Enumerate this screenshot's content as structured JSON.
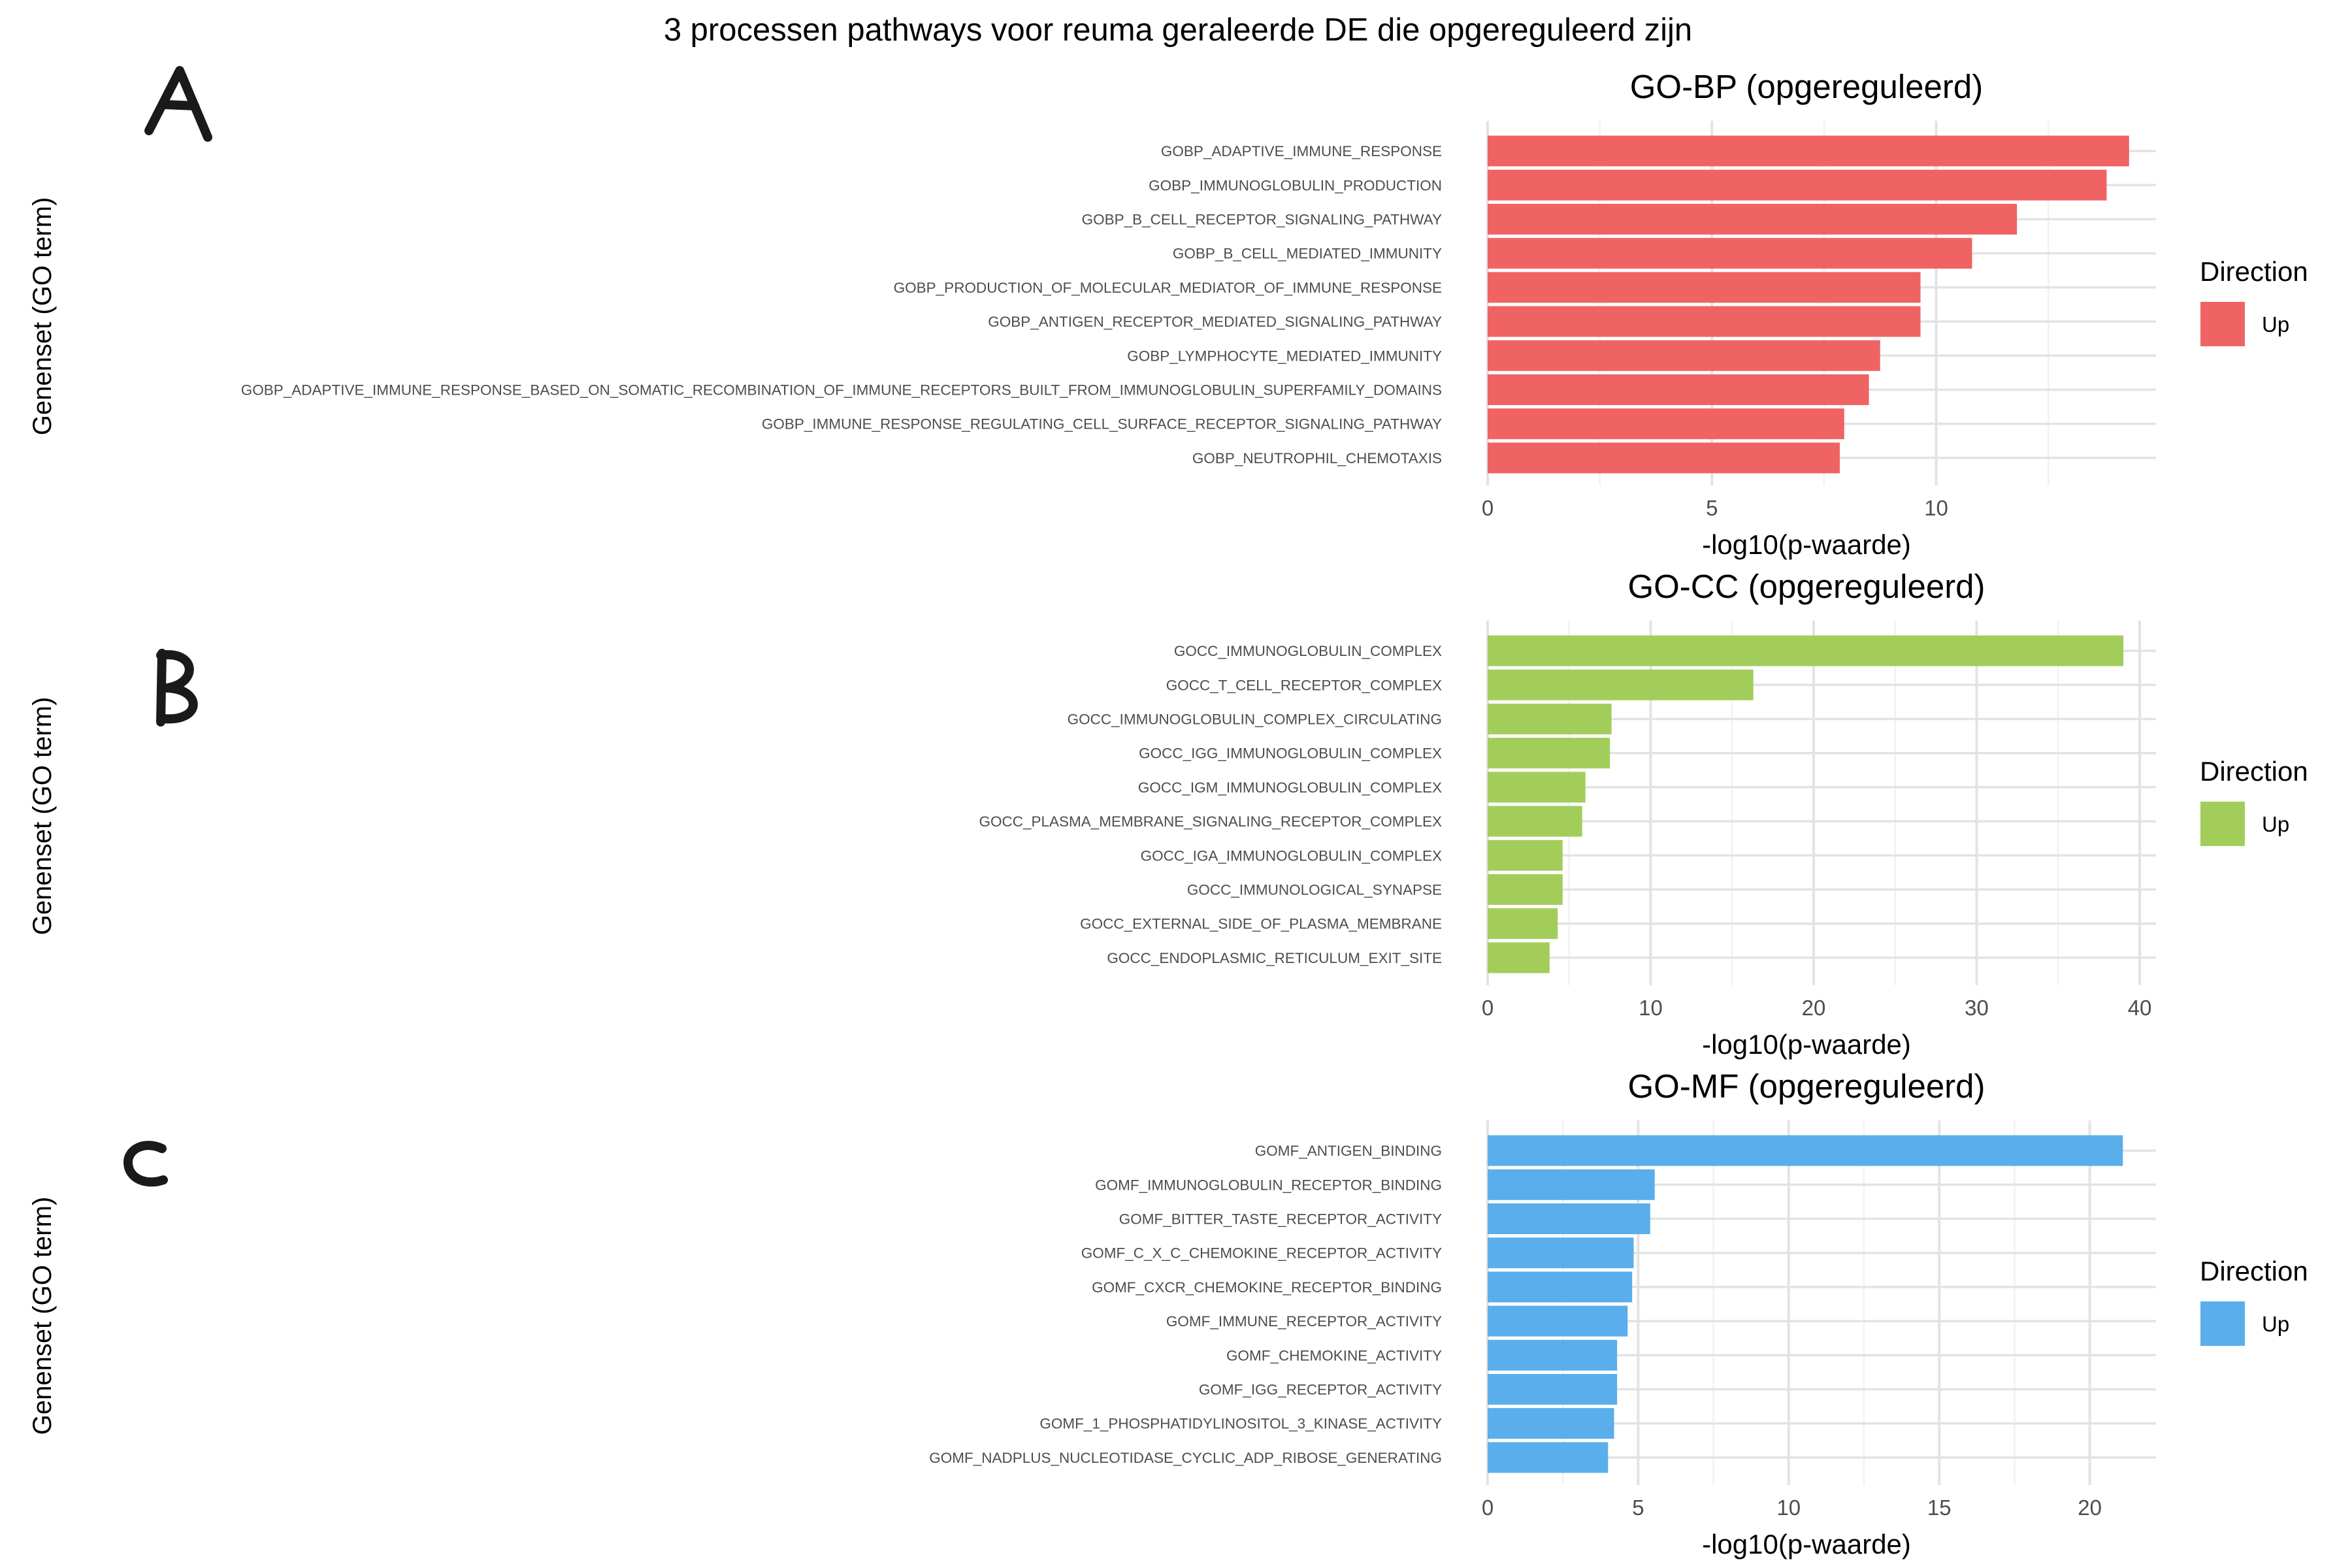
{
  "title": "3 processen pathways voor reuma geraleerde DE die opgereguleerd zijn",
  "panel_letters": [
    "A",
    "B",
    "C"
  ],
  "chart_data": [
    {
      "type": "bar",
      "orientation": "horizontal",
      "title": "GO-BP (opgereguleerd)",
      "xlabel": "-log10(p-waarde)",
      "ylabel": "Genenset (GO term)",
      "color": "#F06363",
      "legend": {
        "title": "Direction",
        "label": "Up",
        "placement": "right"
      },
      "xlim": [
        0,
        14.9
      ],
      "xticks": [
        0,
        5,
        10
      ],
      "grid": true,
      "categories": [
        "GOBP_ADAPTIVE_IMMUNE_RESPONSE",
        "GOBP_IMMUNOGLOBULIN_PRODUCTION",
        "GOBP_B_CELL_RECEPTOR_SIGNALING_PATHWAY",
        "GOBP_B_CELL_MEDIATED_IMMUNITY",
        "GOBP_PRODUCTION_OF_MOLECULAR_MEDIATOR_OF_IMMUNE_RESPONSE",
        "GOBP_ANTIGEN_RECEPTOR_MEDIATED_SIGNALING_PATHWAY",
        "GOBP_LYMPHOCYTE_MEDIATED_IMMUNITY",
        "GOBP_ADAPTIVE_IMMUNE_RESPONSE_BASED_ON_SOMATIC_RECOMBINATION_OF_IMMUNE_RECEPTORS_BUILT_FROM_IMMUNOGLOBULIN_SUPERFAMILY_DOMAINS",
        "GOBP_IMMUNE_RESPONSE_REGULATING_CELL_SURFACE_RECEPTOR_SIGNALING_PATHWAY",
        "GOBP_NEUTROPHIL_CHEMOTAXIS"
      ],
      "values": [
        14.3,
        13.8,
        11.8,
        10.8,
        9.65,
        9.65,
        8.75,
        8.5,
        7.95,
        7.85
      ]
    },
    {
      "type": "bar",
      "orientation": "horizontal",
      "title": "GO-CC (opgereguleerd)",
      "xlabel": "-log10(p-waarde)",
      "ylabel": "Genenset (GO term)",
      "color": "#A3CD5A",
      "legend": {
        "title": "Direction",
        "label": "Up",
        "placement": "right"
      },
      "xlim": [
        0,
        41
      ],
      "xticks": [
        0,
        10,
        20,
        30,
        40
      ],
      "grid": true,
      "categories": [
        "GOCC_IMMUNOGLOBULIN_COMPLEX",
        "GOCC_T_CELL_RECEPTOR_COMPLEX",
        "GOCC_IMMUNOGLOBULIN_COMPLEX_CIRCULATING",
        "GOCC_IGG_IMMUNOGLOBULIN_COMPLEX",
        "GOCC_IGM_IMMUNOGLOBULIN_COMPLEX",
        "GOCC_PLASMA_MEMBRANE_SIGNALING_RECEPTOR_COMPLEX",
        "GOCC_IGA_IMMUNOGLOBULIN_COMPLEX",
        "GOCC_IMMUNOLOGICAL_SYNAPSE",
        "GOCC_EXTERNAL_SIDE_OF_PLASMA_MEMBRANE",
        "GOCC_ENDOPLASMIC_RETICULUM_EXIT_SITE"
      ],
      "values": [
        39.0,
        16.3,
        7.6,
        7.5,
        6.0,
        5.8,
        4.6,
        4.6,
        4.3,
        3.8
      ]
    },
    {
      "type": "bar",
      "orientation": "horizontal",
      "title": "GO-MF (opgereguleerd)",
      "xlabel": "-log10(p-waarde)",
      "ylabel": "Genenset (GO term)",
      "color": "#5AAEEC",
      "legend": {
        "title": "Direction",
        "label": "Up",
        "placement": "right"
      },
      "xlim": [
        0,
        22.2
      ],
      "xticks": [
        0,
        5,
        10,
        15,
        20
      ],
      "grid": true,
      "categories": [
        "GOMF_ANTIGEN_BINDING",
        "GOMF_IMMUNOGLOBULIN_RECEPTOR_BINDING",
        "GOMF_BITTER_TASTE_RECEPTOR_ACTIVITY",
        "GOMF_C_X_C_CHEMOKINE_RECEPTOR_ACTIVITY",
        "GOMF_CXCR_CHEMOKINE_RECEPTOR_BINDING",
        "GOMF_IMMUNE_RECEPTOR_ACTIVITY",
        "GOMF_CHEMOKINE_ACTIVITY",
        "GOMF_IGG_RECEPTOR_ACTIVITY",
        "GOMF_1_PHOSPHATIDYLINOSITOL_3_KINASE_ACTIVITY",
        "GOMF_NADPLUS_NUCLEOTIDASE_CYCLIC_ADP_RIBOSE_GENERATING"
      ],
      "values": [
        21.1,
        5.55,
        5.4,
        4.85,
        4.8,
        4.65,
        4.3,
        4.3,
        4.2,
        4.0
      ]
    }
  ]
}
